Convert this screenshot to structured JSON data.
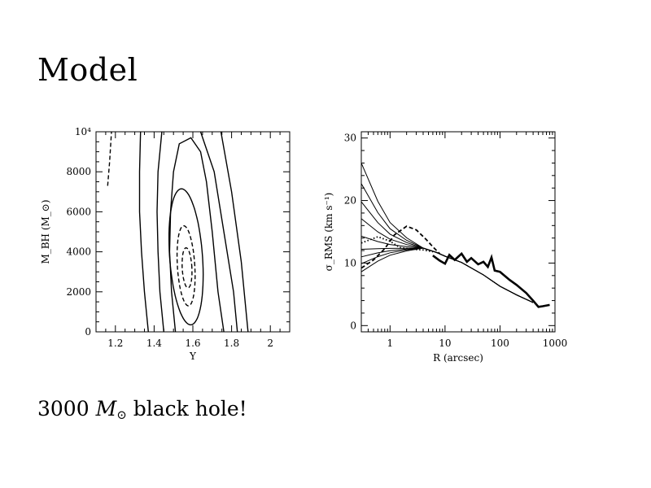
{
  "slide": {
    "title": "Model",
    "caption_prefix": "3000",
    "caption_mass_symbol": "M",
    "caption_sun_symbol": "⊙",
    "caption_suffix": "black hole!"
  },
  "chart_data": [
    {
      "type": "contour",
      "title": "",
      "xlabel": "Υ",
      "ylabel": "M_BH (M_⊙)",
      "xlim": [
        1.1,
        2.1
      ],
      "ylim": [
        0,
        10000
      ],
      "xticks": [
        1.2,
        1.4,
        1.6,
        1.8,
        2
      ],
      "xtick_labels": [
        "1.2",
        "1.4",
        "1.6",
        "1.8",
        "2"
      ],
      "yticks": [
        0,
        2000,
        4000,
        6000,
        8000,
        10000
      ],
      "ytick_labels": [
        "0",
        "2000",
        "4000",
        "6000",
        "8000",
        "10⁴"
      ],
      "best_fit": {
        "upsilon": 1.57,
        "mbh": 3000
      },
      "contours": [
        {
          "level": "inner-1",
          "style": "dashed",
          "center": [
            1.57,
            3200
          ],
          "half_width": 0.025,
          "half_height": 1000,
          "tilt": -0.05
        },
        {
          "level": "inner-2",
          "style": "dashed",
          "center": [
            1.565,
            3300
          ],
          "half_width": 0.045,
          "half_height": 2000,
          "tilt": -0.06
        },
        {
          "level": "1",
          "style": "solid",
          "center": [
            1.565,
            3750
          ],
          "half_width": 0.085,
          "half_height": 3400,
          "tilt": -0.07
        }
      ],
      "open_contours": [
        {
          "level": "2",
          "style": "solid",
          "points": [
            [
              1.51,
              0
            ],
            [
              1.49,
              2000
            ],
            [
              1.48,
              4000
            ],
            [
              1.485,
              6000
            ],
            [
              1.5,
              8000
            ],
            [
              1.53,
              9400
            ],
            [
              1.59,
              9700
            ],
            [
              1.64,
              9000
            ],
            [
              1.67,
              7500
            ],
            [
              1.7,
              5000
            ],
            [
              1.73,
              2000
            ],
            [
              1.76,
              0
            ]
          ]
        },
        {
          "level": "3",
          "style": "solid",
          "points": [
            [
              1.45,
              0
            ],
            [
              1.43,
              2000
            ],
            [
              1.42,
              4000
            ],
            [
              1.415,
              6000
            ],
            [
              1.42,
              8000
            ],
            [
              1.44,
              10000
            ]
          ]
        },
        {
          "level": "3b",
          "style": "solid",
          "points": [
            [
              1.64,
              10000
            ],
            [
              1.71,
              8000
            ],
            [
              1.76,
              5000
            ],
            [
              1.81,
              2000
            ],
            [
              1.83,
              0
            ]
          ]
        },
        {
          "level": "4",
          "style": "solid",
          "points": [
            [
              1.37,
              0
            ],
            [
              1.35,
              2000
            ],
            [
              1.335,
              4000
            ],
            [
              1.325,
              6000
            ],
            [
              1.325,
              8000
            ],
            [
              1.33,
              10000
            ]
          ]
        },
        {
          "level": "4b",
          "style": "solid",
          "points": [
            [
              1.745,
              10000
            ],
            [
              1.8,
              7000
            ],
            [
              1.85,
              3500
            ],
            [
              1.885,
              0
            ]
          ]
        },
        {
          "level": "5",
          "style": "dashed",
          "points": [
            [
              1.16,
              7300
            ],
            [
              1.17,
              8500
            ],
            [
              1.18,
              10000
            ]
          ]
        }
      ]
    },
    {
      "type": "line",
      "title": "",
      "xlabel": "R (arcsec)",
      "ylabel": "σ_RMS (km s⁻¹)",
      "xscale": "log",
      "xlim": [
        0.3,
        1000
      ],
      "ylim": [
        -1,
        31
      ],
      "xticks": [
        1,
        10,
        100,
        1000
      ],
      "xtick_labels": [
        "1",
        "10",
        "100",
        "1000"
      ],
      "yticks": [
        0,
        10,
        20,
        30
      ],
      "ytick_labels": [
        "0",
        "10",
        "20",
        "30"
      ],
      "model_curves": {
        "x": [
          0.3,
          0.6,
          1,
          2,
          4,
          7,
          10,
          20,
          50,
          100,
          200,
          400,
          800
        ],
        "central_values": [
          8.6,
          9.9,
          11,
          12.2,
          14.3,
          17.1,
          19.8,
          22.7,
          26
        ],
        "converge_at_4": 12.4,
        "outer_values": [
          11.7,
          11.1,
          10.1,
          8.1,
          6.3,
          4.9,
          3.7
        ],
        "style": "solid"
      },
      "data_curves": [
        {
          "name": "dashed-observed",
          "style": "dashed",
          "x": [
            0.3,
            0.5,
            0.8,
            1.2,
            2,
            3,
            4.5,
            6,
            8
          ],
          "y": [
            9.2,
            10.5,
            12.3,
            14.5,
            15.9,
            15.3,
            13.8,
            12.6,
            11.5
          ]
        },
        {
          "name": "dotted-observed",
          "style": "dotted",
          "x": [
            0.3,
            0.6,
            1,
            1.5,
            2.5,
            4,
            6
          ],
          "y": [
            13.2,
            14.2,
            13.5,
            12.5,
            12.2,
            12.1,
            11.8
          ]
        },
        {
          "name": "thick-observed",
          "style": "thick",
          "x": [
            6,
            8,
            10,
            12,
            15,
            20,
            25,
            30,
            40,
            50,
            60,
            70,
            80,
            100,
            150,
            200,
            300,
            400,
            500,
            600,
            800
          ],
          "y": [
            11.2,
            10.4,
            9.9,
            11.3,
            10.5,
            11.5,
            10.2,
            10.8,
            9.8,
            10.2,
            9.4,
            10.9,
            8.8,
            8.6,
            7.3,
            6.5,
            5.2,
            4.0,
            3.0,
            3.1,
            3.3
          ]
        }
      ]
    }
  ]
}
